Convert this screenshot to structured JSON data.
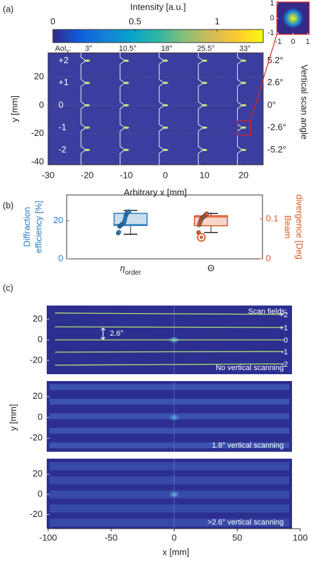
{
  "chart_data": [
    {
      "type": "heatmap",
      "panel_label": "(a)",
      "colorbar_title": "Intensity [a.u.]",
      "clim": [
        0,
        1.28
      ],
      "colorbar_ticks": [
        0,
        0.5,
        1
      ],
      "colormap": [
        "#352a87",
        "#0f5cdd",
        "#1481d6",
        "#06a4ca",
        "#2eb7a4",
        "#87bf77",
        "#d1bb59",
        "#fec832",
        "#f9fb0e"
      ],
      "aoi_label": "AoI",
      "aoi_subscript": "y",
      "aoi_suffix": ":",
      "column_labels": [
        "3°",
        "10.5°",
        "18°",
        "25.5°",
        "33°"
      ],
      "row_labels": [
        "+2",
        "+1",
        "0",
        "-1",
        "-2"
      ],
      "scan_angles": [
        "5.2°",
        "2.6°",
        "0°",
        "-2.6°",
        "-5.2°"
      ],
      "scan_axis_label": "Vertical scan angle",
      "spot_x": [
        -20,
        -10,
        0,
        10,
        20
      ],
      "spot_y": [
        31.5,
        15.8,
        0,
        -15.8,
        -31.5
      ],
      "xlabel": "Arbitrary x [mm]",
      "ylabel": "y [mm]",
      "xlim": [
        -30,
        25
      ],
      "ylim": [
        -42,
        37
      ],
      "xticks": [
        -30,
        -20,
        -10,
        0,
        10,
        20
      ],
      "yticks": [
        -40,
        -20,
        0,
        20
      ],
      "background": "#3b3e9e",
      "spot_color": "#c8f07a",
      "inset": {
        "xlim": [
          -1.1,
          1.1
        ],
        "ylim": [
          -1.1,
          1.1
        ],
        "xticks": [
          -1,
          0,
          1
        ],
        "yticks": [
          -1,
          0,
          1
        ],
        "highlight_color": "#e0201b"
      }
    },
    {
      "type": "box",
      "panel_label": "(b)",
      "categories": [
        "η",
        "Θ"
      ],
      "category_subscripts": [
        "order",
        null
      ],
      "ylabel": [
        "Diffraction",
        "efficiency [%]"
      ],
      "y2label": [
        "Beam",
        "divergence [Deg"
      ],
      "ylim": [
        0,
        33.5
      ],
      "yticks": [
        0,
        20
      ],
      "y2lim": [
        0,
        0.16
      ],
      "y2ticks": [
        0,
        0.1
      ],
      "boxes": [
        {
          "color": "#2a7bbf",
          "axis": "y",
          "whisker_low": 12.9,
          "q1": 17.5,
          "median": 17.9,
          "q3": 23.9,
          "whisker_high": 25.4,
          "points": [
            13.5,
            14,
            17,
            17.3,
            17.6,
            18,
            18.2,
            18.5,
            19,
            19.5,
            21,
            22.5,
            23.5,
            24,
            24.5,
            24.8
          ],
          "outliers": []
        },
        {
          "color": "#d95a26",
          "axis": "y2",
          "whisker_low": 0.066,
          "q1": 0.083,
          "median": 0.105,
          "q3": 0.108,
          "whisker_high": 0.114,
          "points": [
            0.066,
            0.085,
            0.09,
            0.095,
            0.1,
            0.102,
            0.104,
            0.105,
            0.106,
            0.108,
            0.11,
            0.112,
            0.113
          ],
          "outliers": [
            0.054
          ]
        }
      ]
    },
    {
      "type": "image-stack",
      "panel_label": "(c)",
      "xlabel": "x [mm]",
      "ylabel": "y [mm]",
      "xlim": [
        -100,
        100
      ],
      "xticks": [
        -100,
        -50,
        0,
        50,
        100
      ],
      "background": "#2c2f8f",
      "line_color": "#b8e86a",
      "images": [
        {
          "ylim": [
            -33.3,
            33.3
          ],
          "yticks": [
            -20,
            0,
            20
          ],
          "caption": "No vertical scanning",
          "line_y": [
            24.7,
            12,
            0,
            -11.3,
            -23.3
          ],
          "line_labels": [
            "+2",
            "+1",
            "0",
            "-1",
            "-2"
          ],
          "legend_title": "Scan fields:",
          "spacing_label": "2.6°"
        },
        {
          "ylim": [
            -33,
            35
          ],
          "yticks": [
            -20,
            0,
            20
          ],
          "caption": "1.8° vertical scanning"
        },
        {
          "ylim": [
            -34,
            35.5
          ],
          "yticks": [
            -20,
            0,
            20
          ],
          "caption": ">2.6° vertical scanning"
        }
      ]
    }
  ]
}
